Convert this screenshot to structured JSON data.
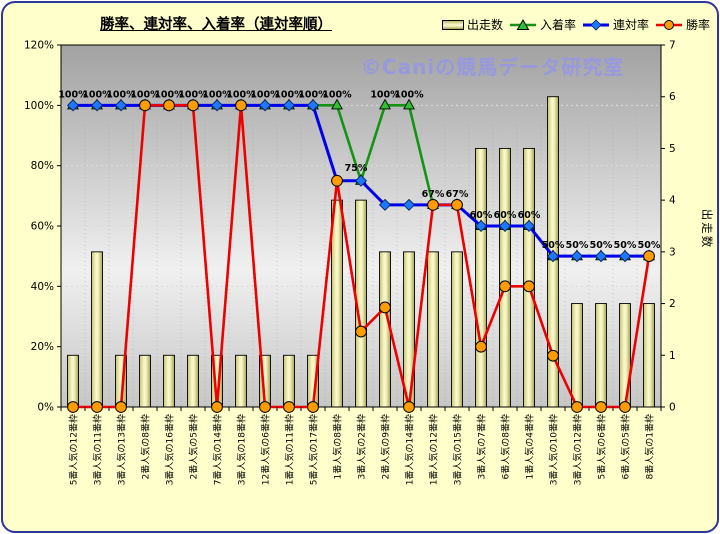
{
  "watermark": "©Caniの競馬データ研究室",
  "watermark_color": "#9898e0",
  "frame": {
    "background": "#ffffcc",
    "border_color": "#2f3699"
  },
  "legend": {
    "items": [
      {
        "label": "出走数",
        "swatch": "bar"
      },
      {
        "label": "入着率",
        "swatch": "triangle-line"
      },
      {
        "label": "連対率",
        "swatch": "diamond-line"
      },
      {
        "label": "勝率",
        "swatch": "circle-line"
      }
    ]
  },
  "chart_data": {
    "type": "combo",
    "title": "勝率、連対率、入着率（連対率順）",
    "categories": [
      "5番人気の12番枠",
      "3番人気の11番枠",
      "3番人気の13番枠",
      "2番人気の8番枠",
      "3番人気の16番枠",
      "2番人気の5番枠",
      "7番人気の14番枠",
      "3番人気の18番枠",
      "12番人気の6番枠",
      "1番人気の11番枠",
      "5番人気の17番枠",
      "1番人気の8番枠",
      "3番人気の2番枠",
      "2番人気の9番枠",
      "1番人気の14番枠",
      "1番人気の12番枠",
      "3番人気の15番枠",
      "3番人気の7番枠",
      "6番人気の8番枠",
      "1番人気の4番枠",
      "3番人気の10番枠",
      "3番人気の12番枠",
      "5番人気の6番枠",
      "6番人気の5番枠",
      "8番人気の1番枠"
    ],
    "series": [
      {
        "name": "出走数",
        "type": "bar",
        "axis": "right",
        "color": "#e3e095",
        "stroke": "#000000",
        "values": [
          1,
          3,
          1,
          1,
          1,
          1,
          1,
          1,
          1,
          1,
          1,
          4,
          4,
          3,
          3,
          3,
          3,
          5,
          5,
          5,
          6,
          2,
          2,
          2,
          2
        ]
      },
      {
        "name": "入着率",
        "type": "line",
        "axis": "left",
        "color": "#149414",
        "marker": "triangle",
        "marker_fill": "#2fbf2f",
        "values": [
          100,
          100,
          100,
          100,
          100,
          100,
          100,
          100,
          100,
          100,
          100,
          100,
          75,
          100,
          100,
          67,
          67,
          60,
          60,
          60,
          50,
          50,
          50,
          50,
          50
        ],
        "point_labels": [
          "100%",
          "100%",
          "100%",
          "100%",
          "100%",
          "100%",
          "100%",
          "100%",
          "100%",
          "100%",
          "100%",
          "100%",
          "75%",
          "100%",
          "100%",
          "67%",
          "67%",
          "60%",
          "60%",
          "60%",
          "50%",
          "50%",
          "50%",
          "50%",
          "50%"
        ]
      },
      {
        "name": "連対率",
        "type": "line",
        "axis": "left",
        "color": "#0000ee",
        "marker": "diamond",
        "marker_fill": "#1e78ff",
        "values": [
          100,
          100,
          100,
          100,
          100,
          100,
          100,
          100,
          100,
          100,
          100,
          75,
          75,
          67,
          67,
          67,
          67,
          60,
          60,
          60,
          50,
          50,
          50,
          50,
          50
        ]
      },
      {
        "name": "勝率",
        "type": "line",
        "axis": "left",
        "color": "#ee0000",
        "marker": "circle",
        "marker_fill": "#ff9c00",
        "values": [
          0,
          0,
          0,
          100,
          100,
          100,
          0,
          100,
          0,
          0,
          0,
          75,
          25,
          33,
          0,
          67,
          67,
          20,
          40,
          40,
          17,
          0,
          0,
          0,
          50
        ]
      }
    ],
    "left_axis": {
      "min": 0,
      "max": 120,
      "ticks": [
        "0%",
        "20%",
        "40%",
        "60%",
        "80%",
        "100%",
        "120%"
      ]
    },
    "right_axis": {
      "min": 0,
      "max": 7,
      "ticks": [
        "0",
        "1",
        "2",
        "3",
        "4",
        "5",
        "6",
        "7"
      ],
      "title": "出走数"
    },
    "grid": true,
    "legend_position": "top-right"
  }
}
